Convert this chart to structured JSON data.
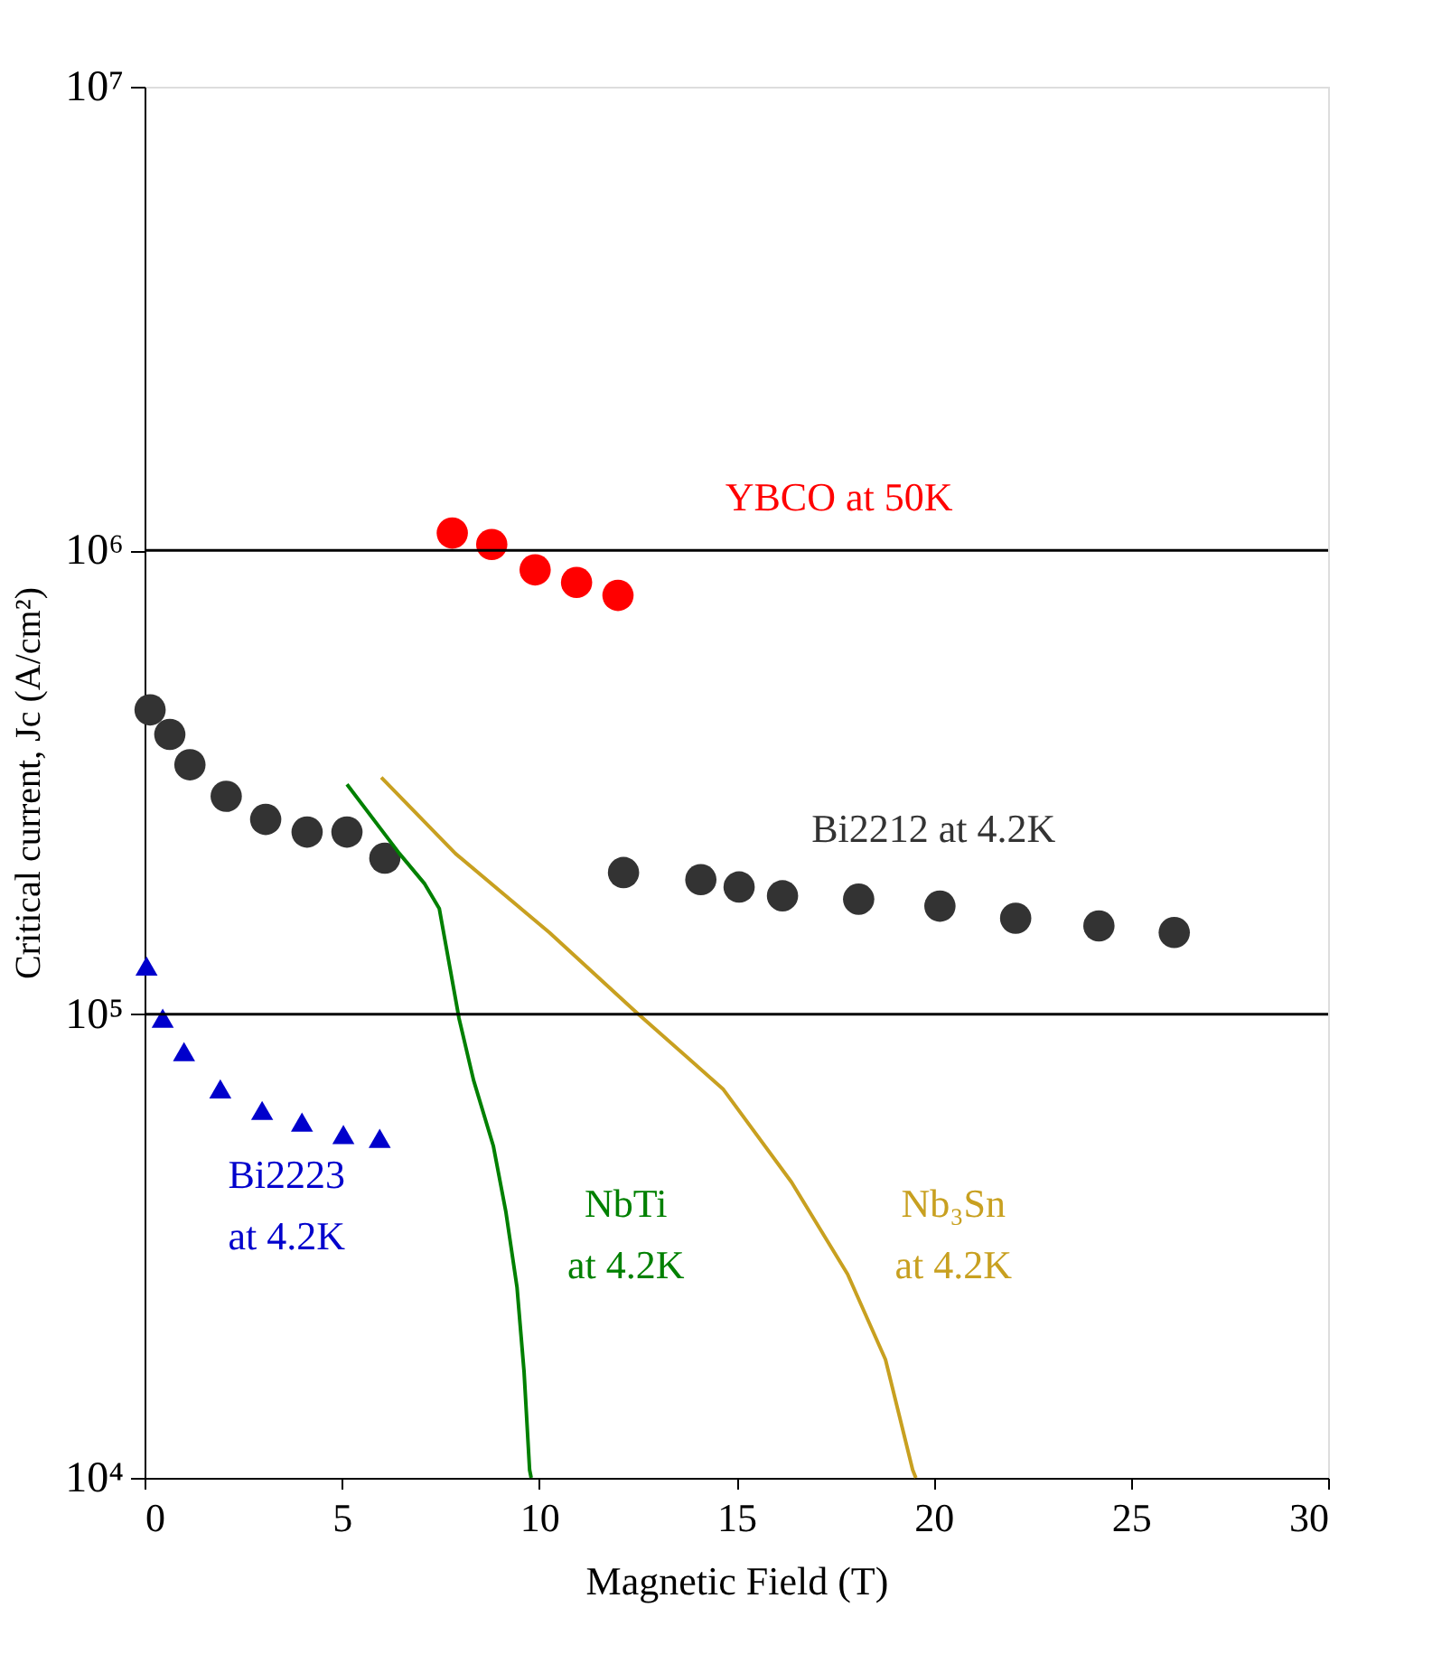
{
  "chart_data": {
    "type": "scatter",
    "xlabel": "Magnetic Field (T)",
    "ylabel": "Critical current, Jc (A/cm²)",
    "log": "y",
    "xlim": [
      0,
      30
    ],
    "xticks": [
      0,
      5,
      10,
      15,
      20,
      25,
      30
    ],
    "ylim": [
      10000,
      10000000
    ],
    "yticks": [
      {
        "value": 10000,
        "label": "10⁴"
      },
      {
        "value": 100000,
        "label": "10⁵"
      },
      {
        "value": 1000000,
        "label": "10⁶"
      },
      {
        "value": 10000000,
        "label": "10⁷"
      }
    ],
    "grid": false,
    "ref_lines": [
      {
        "axis": "y",
        "value": 1000000,
        "color": "#000000"
      },
      {
        "axis": "y",
        "value": 100000,
        "color": "#000000"
      }
    ],
    "series": [
      {
        "name": "YBCO at 50K",
        "marker": "circle",
        "color": "#ff0000",
        "x": [
          7.8,
          8.8,
          9.9,
          10.95,
          12.0
        ],
        "values": [
          1090000,
          1030000,
          908000,
          853000,
          800000
        ]
      },
      {
        "name": "Bi2212  at 4.2K",
        "marker": "circle",
        "color": "#333333",
        "x": [
          0.14,
          0.64,
          1.15,
          2.07,
          3.07,
          4.12,
          5.13,
          6.09,
          12.14,
          14.1,
          15.07,
          16.17,
          18.1,
          20.16,
          22.08,
          24.19,
          26.1
        ],
        "values": [
          453000,
          401000,
          345000,
          295000,
          263000,
          247000,
          247000,
          217000,
          202000,
          195000,
          188000,
          180000,
          177000,
          171000,
          161000,
          155000,
          150000
        ]
      },
      {
        "name": "Bi2223\n    at 4.2K",
        "marker": "triangle",
        "color": "#0000cc",
        "x": [
          0.05,
          0.46,
          1.0,
          1.92,
          2.98,
          3.99,
          5.04,
          5.96
        ],
        "values": [
          127000,
          98000,
          83000,
          69000,
          62000,
          58500,
          55000,
          54000
        ]
      },
      {
        "name": "NbTi\n   at 4.2K",
        "type": "line",
        "marker": "none",
        "color": "#008000",
        "x": [
          5.13,
          6.46,
          7.1,
          7.47,
          7.74,
          7.97,
          8.34,
          8.84,
          9.16,
          9.44,
          9.62,
          9.76,
          9.8
        ],
        "values": [
          313000,
          222000,
          191000,
          169000,
          126000,
          98000,
          72000,
          52000,
          37400,
          25800,
          16900,
          10400,
          10000
        ]
      },
      {
        "name": "Nb₃Sn\n   at 4.2K",
        "type": "line",
        "marker": "none",
        "color": "#c8a020",
        "x": [
          6.0,
          7.88,
          10.26,
          12.46,
          14.66,
          16.4,
          17.82,
          18.78,
          19.47,
          19.55
        ],
        "values": [
          324000,
          222000,
          150000,
          101000,
          69000,
          43400,
          27500,
          18000,
          10400,
          10000
        ]
      }
    ]
  }
}
